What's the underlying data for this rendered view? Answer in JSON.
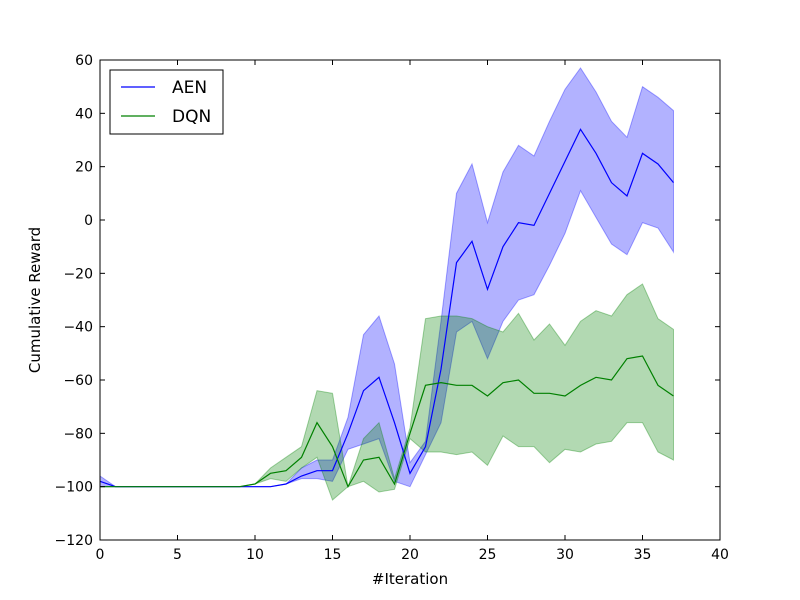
{
  "chart_data": {
    "type": "line",
    "title": "",
    "xlabel": "#Iteration",
    "ylabel": "Cumulative Reward",
    "xlim": [
      0,
      40
    ],
    "ylim": [
      -120,
      60
    ],
    "xticks": [
      0,
      5,
      10,
      15,
      20,
      25,
      30,
      35,
      40
    ],
    "yticks": [
      -120,
      -100,
      -80,
      -60,
      -40,
      -20,
      0,
      20,
      40,
      60
    ],
    "grid": false,
    "legend_position": "top-left",
    "x": [
      0,
      1,
      2,
      3,
      4,
      5,
      6,
      7,
      8,
      9,
      10,
      11,
      12,
      13,
      14,
      15,
      16,
      17,
      18,
      19,
      20,
      21,
      22,
      23,
      24,
      25,
      26,
      27,
      28,
      29,
      30,
      31,
      32,
      33,
      34,
      35,
      36,
      37
    ],
    "series": [
      {
        "name": "AEN",
        "color": "#0000ff",
        "band_color": "#0000ff",
        "values": [
          -98,
          -100,
          -100,
          -100,
          -100,
          -100,
          -100,
          -100,
          -100,
          -100,
          -100,
          -100,
          -99,
          -96,
          -94,
          -94,
          -80,
          -64,
          -59,
          -76,
          -95,
          -85,
          -56,
          -16,
          -8,
          -26,
          -10,
          -1,
          -2,
          10,
          22,
          34,
          25,
          14,
          9,
          25,
          21,
          14
        ],
        "lower": [
          -100,
          -100,
          -100,
          -100,
          -100,
          -100,
          -100,
          -100,
          -100,
          -100,
          -100,
          -100,
          -99,
          -97,
          -97,
          -98,
          -86,
          -84,
          -82,
          -98,
          -100,
          -88,
          -76,
          -42,
          -38,
          -52,
          -38,
          -30,
          -28,
          -17,
          -5,
          11,
          1,
          -9,
          -13,
          -1,
          -3,
          -12
        ],
        "upper": [
          -96,
          -100,
          -100,
          -100,
          -100,
          -100,
          -100,
          -100,
          -100,
          -100,
          -100,
          -100,
          -99,
          -93,
          -90,
          -90,
          -74,
          -43,
          -36,
          -54,
          -91,
          -83,
          -38,
          10,
          21,
          -1,
          18,
          28,
          24,
          37,
          49,
          57,
          48,
          37,
          31,
          50,
          46,
          41
        ]
      },
      {
        "name": "DQN",
        "color": "#008000",
        "band_color": "#008000",
        "values": [
          -100,
          -100,
          -100,
          -100,
          -100,
          -100,
          -100,
          -100,
          -100,
          -100,
          -99,
          -95,
          -94,
          -89,
          -76,
          -85,
          -100,
          -90,
          -89,
          -99,
          -80,
          -62,
          -61,
          -62,
          -62,
          -66,
          -61,
          -60,
          -65,
          -65,
          -66,
          -62,
          -59,
          -60,
          -52,
          -51,
          -62,
          -66
        ],
        "lower": [
          -100,
          -100,
          -100,
          -100,
          -100,
          -100,
          -100,
          -100,
          -100,
          -100,
          -99,
          -97,
          -98,
          -93,
          -89,
          -105,
          -100,
          -98,
          -102,
          -101,
          -82,
          -87,
          -87,
          -88,
          -87,
          -92,
          -81,
          -85,
          -85,
          -91,
          -86,
          -87,
          -84,
          -83,
          -76,
          -76,
          -87,
          -90
        ],
        "upper": [
          -100,
          -100,
          -100,
          -100,
          -100,
          -100,
          -100,
          -100,
          -100,
          -100,
          -99,
          -93,
          -89,
          -85,
          -64,
          -65,
          -100,
          -82,
          -76,
          -97,
          -78,
          -37,
          -36,
          -36,
          -37,
          -40,
          -42,
          -35,
          -45,
          -39,
          -47,
          -38,
          -34,
          -36,
          -28,
          -24,
          -37,
          -41
        ]
      }
    ]
  }
}
